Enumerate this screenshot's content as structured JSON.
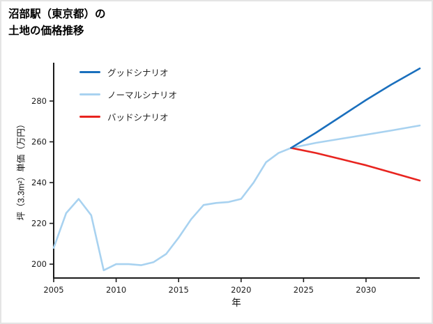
{
  "title": {
    "line1": "沼部駅（東京都）の",
    "line2": "土地の価格推移"
  },
  "chart_data": {
    "type": "line",
    "title": "沼部駅（東京都）の土地の価格推移",
    "xlabel": "年",
    "ylabel": "坪（3.3m²）単価（万円）",
    "x_ticks": [
      2005,
      2010,
      2015,
      2020,
      2025,
      2030
    ],
    "y_ticks": [
      200,
      220,
      240,
      260,
      280
    ],
    "x_range": [
      2005,
      2034.3
    ],
    "y_range": [
      193.2,
      298.8
    ],
    "grid": false,
    "legend_position": "upper-left",
    "legend": [
      "グッドシナリオ",
      "ノーマルシナリオ",
      "バッドシナリオ"
    ],
    "colors": {
      "good": "#1a6fbd",
      "normal": "#a8d2f0",
      "bad": "#e8241f"
    },
    "series": [
      {
        "name": "グッドシナリオ",
        "color_key": "good",
        "x": [
          2024,
          2026,
          2028,
          2030,
          2032,
          2034.3
        ],
        "values": [
          257,
          264.5,
          272.5,
          280.5,
          288,
          296
        ]
      },
      {
        "name": "ノーマルシナリオ",
        "color_key": "normal",
        "x": [
          2005,
          2006,
          2007,
          2008,
          2009,
          2010,
          2011,
          2012,
          2013,
          2014,
          2015,
          2016,
          2017,
          2018,
          2019,
          2020,
          2021,
          2022,
          2023,
          2024,
          2026,
          2028,
          2030,
          2032,
          2034.3
        ],
        "values": [
          208,
          225,
          232,
          224,
          197,
          200,
          200,
          199.5,
          201,
          205,
          213,
          222,
          229,
          230,
          230.5,
          232,
          240,
          250,
          254.5,
          257,
          259.5,
          261.5,
          263.5,
          265.5,
          268
        ]
      },
      {
        "name": "バッドシナリオ",
        "color_key": "bad",
        "x": [
          2024,
          2026,
          2028,
          2030,
          2032,
          2034.3
        ],
        "values": [
          257,
          254.5,
          251.5,
          248.5,
          245,
          241
        ]
      }
    ]
  }
}
